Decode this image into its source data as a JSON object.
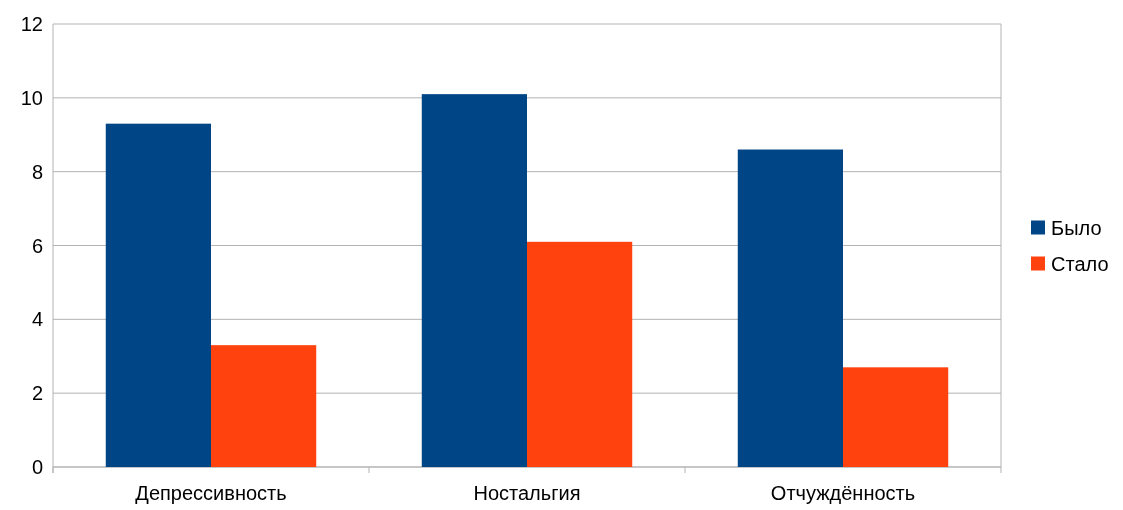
{
  "chart_data": {
    "type": "bar",
    "categories": [
      "Депрессивность",
      "Ностальгия",
      "Отчуждённость"
    ],
    "series": [
      {
        "name": "Было",
        "color": "#004586",
        "values": [
          9.3,
          10.1,
          8.6
        ]
      },
      {
        "name": "Стало",
        "color": "#ff420e",
        "values": [
          3.3,
          6.1,
          2.7
        ]
      }
    ],
    "ylim": [
      0,
      12
    ],
    "yticks": [
      0,
      2,
      4,
      6,
      8,
      10,
      12
    ],
    "grid": "y",
    "legend": "right"
  }
}
